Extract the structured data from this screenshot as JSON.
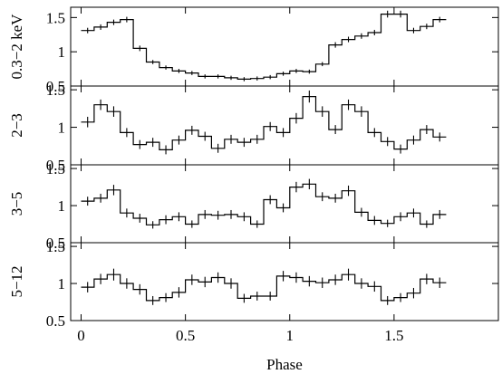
{
  "chart_data": {
    "type": "line",
    "xlabel": "Phase",
    "xlim": [
      -0.05,
      2.0
    ],
    "x_ticks": [
      {
        "value": 0,
        "label": "0"
      },
      {
        "value": 0.5,
        "label": "0.5"
      },
      {
        "value": 1,
        "label": "1"
      },
      {
        "value": 1.5,
        "label": "1.5"
      }
    ],
    "bin_width": 0.0625,
    "color": "#000000",
    "panels": [
      {
        "ylabel": "0.3−2 keV",
        "ylim": [
          0.5,
          1.65
        ],
        "y_ticks": [
          {
            "value": 0.5,
            "label": "0.5"
          },
          {
            "value": 1,
            "label": "1"
          },
          {
            "value": 1.5,
            "label": "1.5"
          }
        ],
        "values": [
          1.31,
          1.36,
          1.43,
          1.47,
          1.05,
          0.85,
          0.77,
          0.72,
          0.69,
          0.64,
          0.64,
          0.62,
          0.6,
          0.61,
          0.63,
          0.68,
          0.72,
          0.71,
          0.82,
          1.1,
          1.18,
          1.23,
          1.28,
          1.55,
          1.55,
          1.31,
          1.37,
          1.47
        ],
        "errors": [
          0.04,
          0.04,
          0.04,
          0.04,
          0.04,
          0.03,
          0.03,
          0.03,
          0.03,
          0.03,
          0.03,
          0.03,
          0.03,
          0.03,
          0.03,
          0.03,
          0.03,
          0.03,
          0.03,
          0.04,
          0.04,
          0.04,
          0.04,
          0.05,
          0.05,
          0.04,
          0.04,
          0.04
        ]
      },
      {
        "ylabel": "2−3",
        "ylim": [
          0.5,
          1.55
        ],
        "y_ticks": [
          {
            "value": 0.5,
            "label": "0.5"
          },
          {
            "value": 1,
            "label": "1"
          },
          {
            "value": 1.5,
            "label": "1.5"
          }
        ],
        "values": [
          1.07,
          1.3,
          1.21,
          0.93,
          0.77,
          0.8,
          0.7,
          0.83,
          0.96,
          0.88,
          0.72,
          0.84,
          0.8,
          0.84,
          1.01,
          0.93,
          1.12,
          1.41,
          1.21,
          0.97,
          1.3,
          1.21,
          0.93,
          0.81,
          0.71,
          0.83,
          0.97,
          0.87
        ],
        "errors": [
          0.07,
          0.07,
          0.07,
          0.06,
          0.06,
          0.06,
          0.06,
          0.06,
          0.06,
          0.06,
          0.06,
          0.06,
          0.06,
          0.06,
          0.06,
          0.06,
          0.07,
          0.08,
          0.07,
          0.06,
          0.07,
          0.07,
          0.06,
          0.06,
          0.06,
          0.06,
          0.06,
          0.06
        ]
      },
      {
        "ylabel": "3−5",
        "ylim": [
          0.5,
          1.55
        ],
        "y_ticks": [
          {
            "value": 0.5,
            "label": "0.5"
          },
          {
            "value": 1,
            "label": "1"
          },
          {
            "value": 1.5,
            "label": "1.5"
          }
        ],
        "values": [
          1.06,
          1.1,
          1.21,
          0.9,
          0.83,
          0.74,
          0.81,
          0.85,
          0.75,
          0.88,
          0.87,
          0.88,
          0.85,
          0.75,
          1.08,
          0.97,
          1.25,
          1.29,
          1.12,
          1.1,
          1.2,
          0.91,
          0.8,
          0.76,
          0.85,
          0.9,
          0.75,
          0.88
        ],
        "errors": [
          0.06,
          0.06,
          0.07,
          0.06,
          0.06,
          0.05,
          0.06,
          0.06,
          0.05,
          0.06,
          0.06,
          0.06,
          0.06,
          0.05,
          0.06,
          0.06,
          0.07,
          0.07,
          0.06,
          0.06,
          0.07,
          0.06,
          0.06,
          0.05,
          0.06,
          0.06,
          0.05,
          0.06
        ]
      },
      {
        "ylabel": "5−12",
        "ylim": [
          0.5,
          1.55
        ],
        "y_ticks": [
          {
            "value": 0.5,
            "label": "0.5"
          },
          {
            "value": 1,
            "label": "1"
          },
          {
            "value": 1.5,
            "label": "1.5"
          }
        ],
        "values": [
          0.95,
          1.06,
          1.12,
          1.0,
          0.92,
          0.77,
          0.81,
          0.88,
          1.05,
          1.02,
          1.08,
          1.0,
          0.8,
          0.83,
          0.83,
          1.1,
          1.08,
          1.03,
          1.01,
          1.05,
          1.12,
          1.0,
          0.96,
          0.77,
          0.81,
          0.87,
          1.06,
          1.01
        ],
        "errors": [
          0.07,
          0.07,
          0.08,
          0.07,
          0.07,
          0.06,
          0.06,
          0.07,
          0.07,
          0.07,
          0.07,
          0.07,
          0.06,
          0.06,
          0.06,
          0.07,
          0.07,
          0.07,
          0.07,
          0.07,
          0.08,
          0.07,
          0.07,
          0.06,
          0.06,
          0.07,
          0.07,
          0.07
        ]
      }
    ]
  }
}
